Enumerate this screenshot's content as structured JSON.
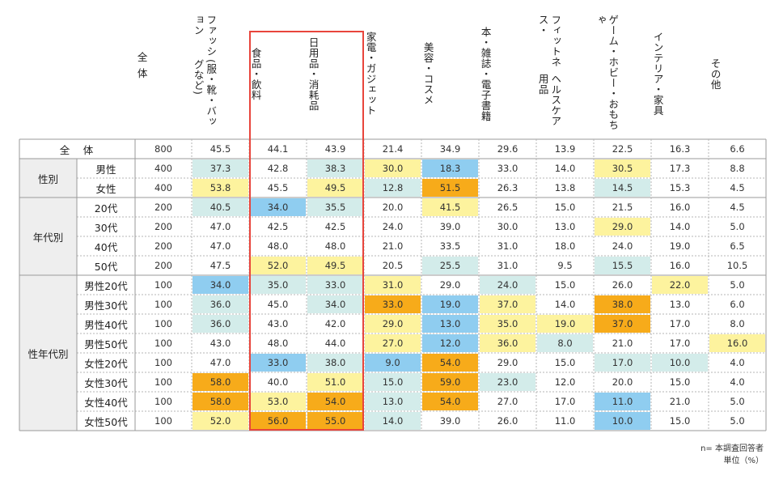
{
  "chart_data": {
    "type": "table",
    "title": "",
    "columns": [
      "全　体",
      "ファッション(服・靴・バッグなど)",
      "食品・飲料",
      "日用品・消耗品",
      "家電・ガジェット",
      "美容・コスメ",
      "本・雑誌・電子書籍",
      "フィットネス・ヘルスケア用品",
      "ゲーム・ホビー・おもちゃ",
      "インテリア・家具",
      "その他"
    ],
    "header_lines": [
      [
        "全",
        "体"
      ],
      [
        "ファッション",
        "(服・靴・バッグなど)"
      ],
      [
        "食品・飲料"
      ],
      [
        "日用品・消耗品"
      ],
      [
        "家電・ガジェット"
      ],
      [
        "美容・コスメ"
      ],
      [
        "本・雑誌・電子書籍"
      ],
      [
        "フィットネス・",
        "ヘルスケア用品"
      ],
      [
        "ゲーム・ホビー・おもちゃ"
      ],
      [
        "インテリア・家具"
      ],
      [
        "その他"
      ]
    ],
    "total_row": {
      "label": "全　体",
      "n": "800",
      "values": [
        "45.5",
        "44.1",
        "43.9",
        "21.4",
        "34.9",
        "29.6",
        "13.9",
        "22.5",
        "16.3",
        "6.6"
      ]
    },
    "groups": [
      {
        "name": "性別",
        "rows": [
          {
            "label": "男性",
            "n": "400",
            "values": [
              "37.3",
              "42.8",
              "38.3",
              "30.0",
              "18.3",
              "33.0",
              "14.0",
              "30.5",
              "17.3",
              "8.8"
            ],
            "colors": [
              "teal",
              "",
              "teal",
              "yellow",
              "blue",
              "",
              "",
              "yellow",
              "",
              ""
            ]
          },
          {
            "label": "女性",
            "n": "400",
            "values": [
              "53.8",
              "45.5",
              "49.5",
              "12.8",
              "51.5",
              "26.3",
              "13.8",
              "14.5",
              "15.3",
              "4.5"
            ],
            "colors": [
              "yellow",
              "",
              "yellow",
              "teal",
              "orange",
              "",
              "",
              "teal",
              "",
              ""
            ]
          }
        ]
      },
      {
        "name": "年代別",
        "rows": [
          {
            "label": "20代",
            "n": "200",
            "values": [
              "40.5",
              "34.0",
              "35.5",
              "20.0",
              "41.5",
              "26.5",
              "15.0",
              "21.5",
              "16.0",
              "4.5"
            ],
            "colors": [
              "teal",
              "blue",
              "teal",
              "",
              "yellow",
              "",
              "",
              "",
              "",
              ""
            ]
          },
          {
            "label": "30代",
            "n": "200",
            "values": [
              "47.0",
              "42.5",
              "42.5",
              "24.0",
              "39.0",
              "30.0",
              "13.0",
              "29.0",
              "14.0",
              "5.0"
            ],
            "colors": [
              "",
              "",
              "",
              "",
              "",
              "",
              "",
              "yellow",
              "",
              ""
            ]
          },
          {
            "label": "40代",
            "n": "200",
            "values": [
              "47.0",
              "48.0",
              "48.0",
              "21.0",
              "33.5",
              "31.0",
              "18.0",
              "24.0",
              "19.0",
              "6.5"
            ],
            "colors": [
              "",
              "",
              "",
              "",
              "",
              "",
              "",
              "",
              "",
              ""
            ]
          },
          {
            "label": "50代",
            "n": "200",
            "values": [
              "47.5",
              "52.0",
              "49.5",
              "20.5",
              "25.5",
              "31.0",
              "9.5",
              "15.5",
              "16.0",
              "10.5"
            ],
            "colors": [
              "",
              "yellow",
              "yellow",
              "",
              "teal",
              "",
              "",
              "teal",
              "",
              ""
            ]
          }
        ]
      },
      {
        "name": "性年代別",
        "rows": [
          {
            "label": "男性20代",
            "n": "100",
            "values": [
              "34.0",
              "35.0",
              "33.0",
              "31.0",
              "29.0",
              "24.0",
              "15.0",
              "26.0",
              "22.0",
              "5.0"
            ],
            "colors": [
              "blue",
              "teal",
              "teal",
              "yellow",
              "",
              "teal",
              "",
              "",
              "yellow",
              ""
            ]
          },
          {
            "label": "男性30代",
            "n": "100",
            "values": [
              "36.0",
              "45.0",
              "34.0",
              "33.0",
              "19.0",
              "37.0",
              "14.0",
              "38.0",
              "13.0",
              "6.0"
            ],
            "colors": [
              "teal",
              "",
              "teal",
              "orange",
              "blue",
              "yellow",
              "",
              "orange",
              "",
              ""
            ]
          },
          {
            "label": "男性40代",
            "n": "100",
            "values": [
              "36.0",
              "43.0",
              "42.0",
              "29.0",
              "13.0",
              "35.0",
              "19.0",
              "37.0",
              "17.0",
              "8.0"
            ],
            "colors": [
              "teal",
              "",
              "",
              "yellow",
              "blue",
              "yellow",
              "yellow",
              "orange",
              "",
              ""
            ]
          },
          {
            "label": "男性50代",
            "n": "100",
            "values": [
              "43.0",
              "48.0",
              "44.0",
              "27.0",
              "12.0",
              "36.0",
              "8.0",
              "21.0",
              "17.0",
              "16.0"
            ],
            "colors": [
              "",
              "",
              "",
              "yellow",
              "blue",
              "yellow",
              "teal",
              "",
              "",
              "yellow"
            ]
          },
          {
            "label": "女性20代",
            "n": "100",
            "values": [
              "47.0",
              "33.0",
              "38.0",
              "9.0",
              "54.0",
              "29.0",
              "15.0",
              "17.0",
              "10.0",
              "4.0"
            ],
            "colors": [
              "",
              "blue",
              "teal",
              "blue",
              "orange",
              "",
              "",
              "teal",
              "teal",
              ""
            ]
          },
          {
            "label": "女性30代",
            "n": "100",
            "values": [
              "58.0",
              "40.0",
              "51.0",
              "15.0",
              "59.0",
              "23.0",
              "12.0",
              "20.0",
              "15.0",
              "4.0"
            ],
            "colors": [
              "orange",
              "",
              "yellow",
              "teal",
              "orange",
              "teal",
              "",
              "",
              "",
              ""
            ]
          },
          {
            "label": "女性40代",
            "n": "100",
            "values": [
              "58.0",
              "53.0",
              "54.0",
              "13.0",
              "54.0",
              "27.0",
              "17.0",
              "11.0",
              "21.0",
              "5.0"
            ],
            "colors": [
              "orange",
              "yellow",
              "orange",
              "teal",
              "orange",
              "",
              "",
              "blue",
              "",
              ""
            ]
          },
          {
            "label": "女性50代",
            "n": "100",
            "values": [
              "52.0",
              "56.0",
              "55.0",
              "14.0",
              "39.0",
              "26.0",
              "11.0",
              "10.0",
              "15.0",
              "5.0"
            ],
            "colors": [
              "yellow",
              "orange",
              "orange",
              "teal",
              "",
              "",
              "",
              "blue",
              "",
              ""
            ]
          }
        ]
      }
    ],
    "highlight_columns": [
      "食品・飲料",
      "日用品・消耗品"
    ],
    "palette": {
      "orange": "#f7ab1a",
      "yellow": "#fdf39e",
      "teal": "#d3ecea",
      "blue": "#8fcdf0",
      "group_bg": "#eeeeee",
      "highlight_border": "#e8453c"
    }
  },
  "notes": {
    "n_note": "n= 本調査回答者",
    "unit_note": "単位（%）"
  }
}
